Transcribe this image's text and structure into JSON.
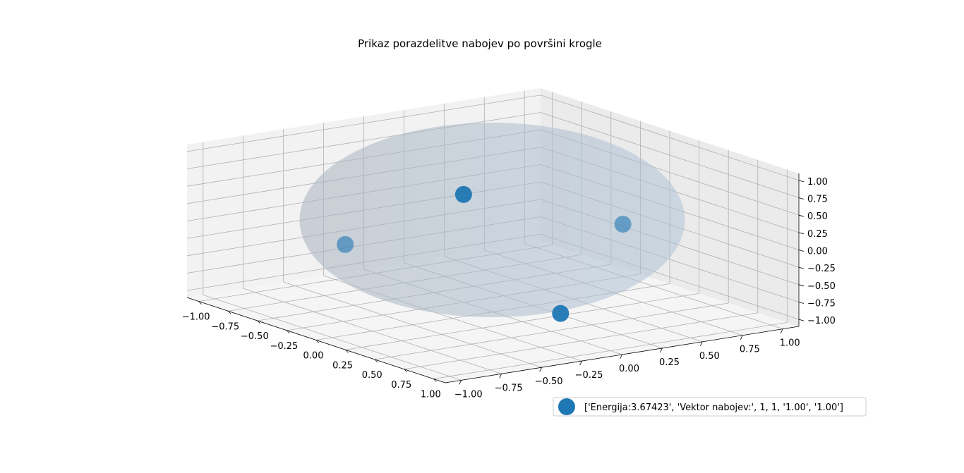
{
  "chart_data": {
    "type": "scatter3d",
    "title": "Prikaz porazdelitve nabojev po površini krogle",
    "xlabel": "",
    "ylabel": "",
    "zlabel": "",
    "xlim": [
      -1.0,
      1.0
    ],
    "ylim": [
      -1.0,
      1.0
    ],
    "zlim": [
      -1.0,
      1.0
    ],
    "grid": true,
    "x_ticks": [
      "−1.00",
      "−0.75",
      "−0.50",
      "−0.25",
      "0.00",
      "0.25",
      "0.50",
      "0.75",
      "1.00"
    ],
    "y_ticks": [
      "−1.00",
      "−0.75",
      "−0.50",
      "−0.25",
      "0.00",
      "0.25",
      "0.50",
      "0.75",
      "1.00"
    ],
    "z_ticks": [
      "−1.00",
      "−0.75",
      "−0.50",
      "−0.25",
      "0.00",
      "0.25",
      "0.50",
      "0.75",
      "1.00"
    ],
    "surface": {
      "shape": "sphere",
      "radius": 1.0,
      "color": "#b0c4d8"
    },
    "series": [
      {
        "name": "['Energija:3.67423', 'Vektor nabojev:', 1, 1, '1.00', '1.00']",
        "color": "#1f77b4",
        "points": [
          {
            "x": 0.27,
            "y": -0.38,
            "z": 0.88
          },
          {
            "x": -0.82,
            "y": -0.32,
            "z": -0.47
          },
          {
            "x": 0.08,
            "y": 0.75,
            "z": -0.07
          },
          {
            "x": 0.48,
            "y": 0.07,
            "z": -0.88
          }
        ]
      }
    ],
    "legend": {
      "position": "lower-right"
    }
  }
}
